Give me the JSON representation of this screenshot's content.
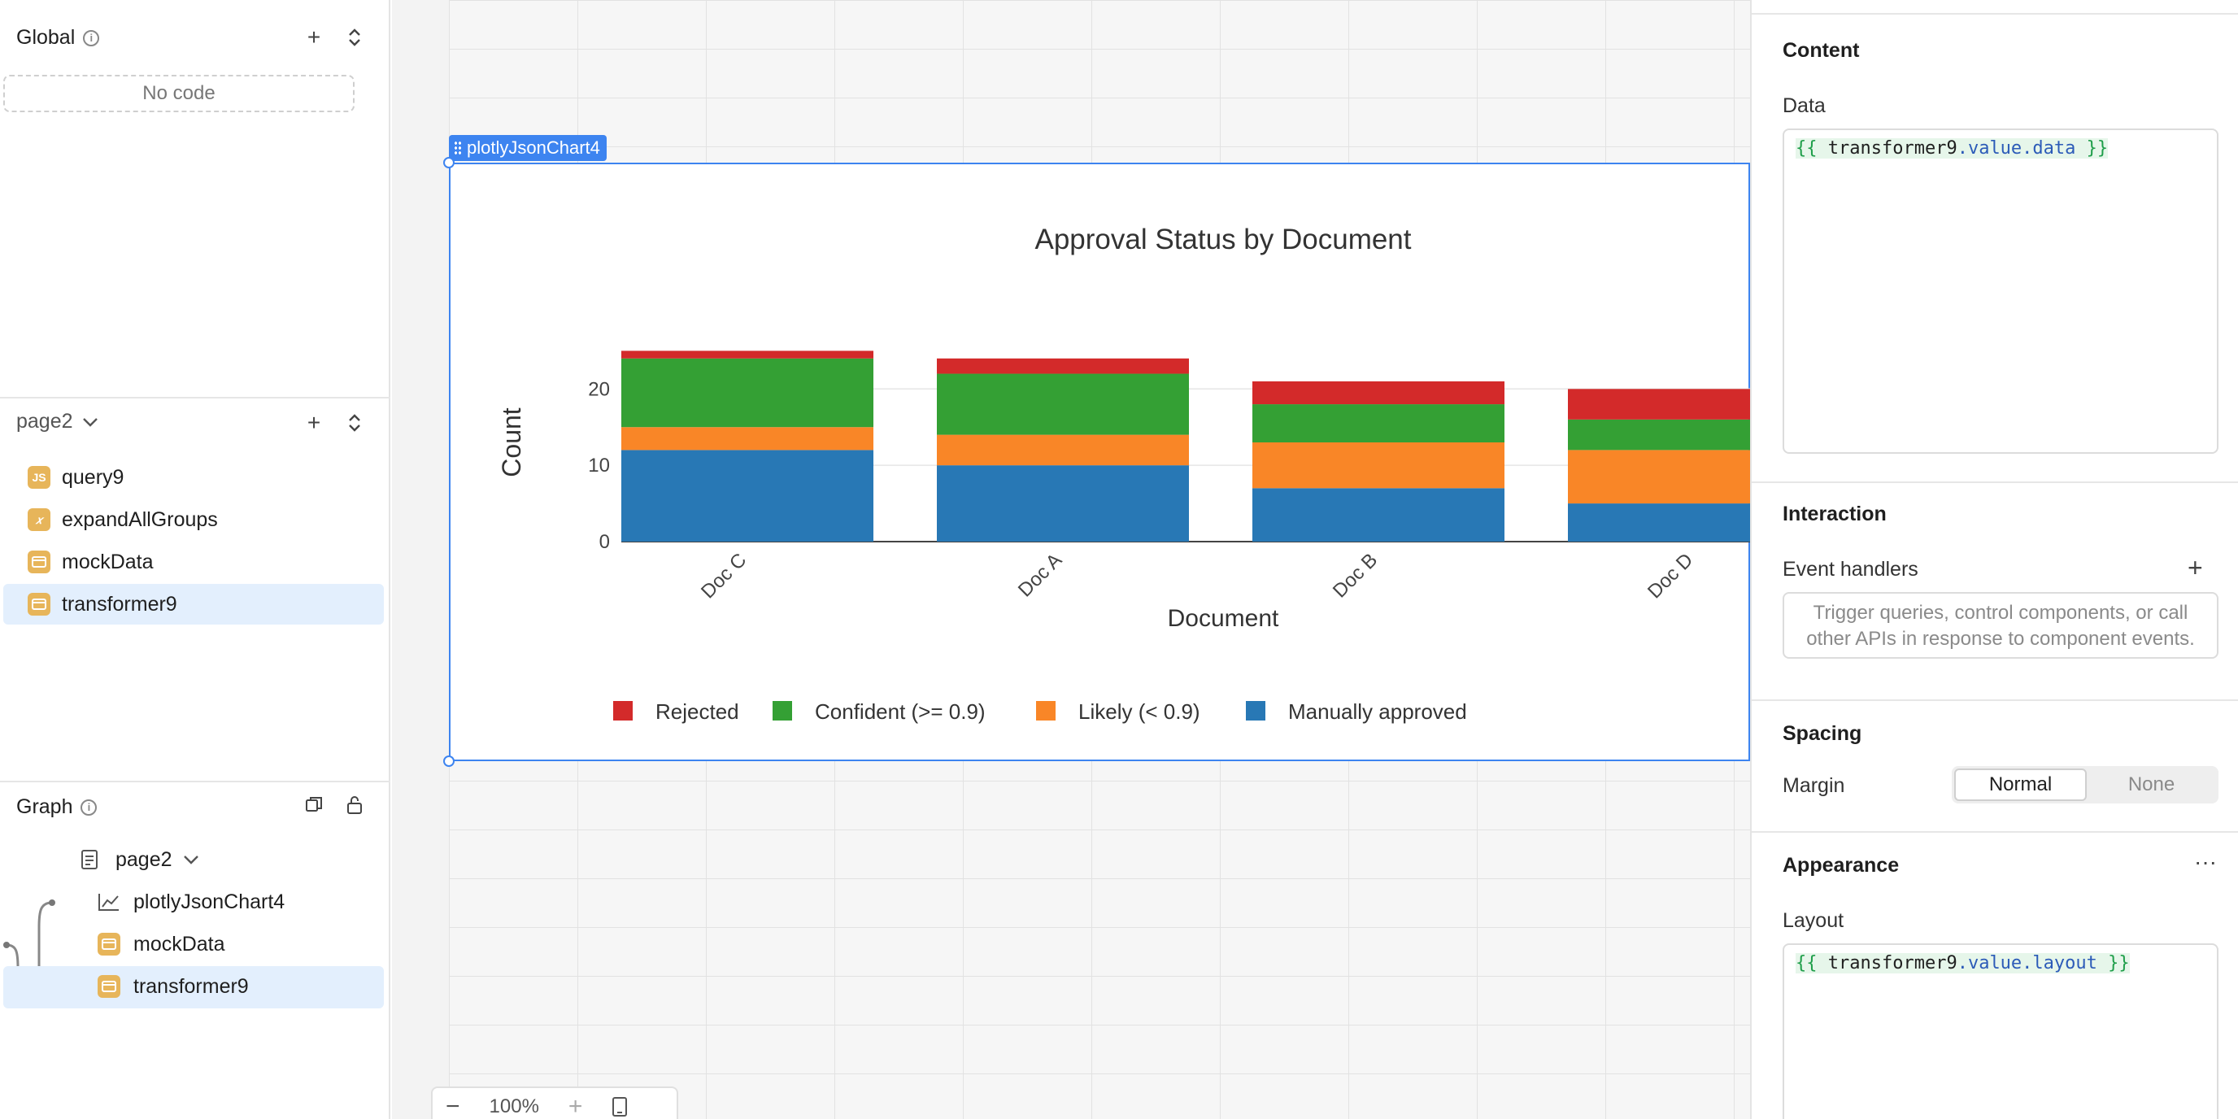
{
  "left_panel": {
    "global": {
      "title": "Global",
      "no_code": "No code"
    },
    "page": {
      "title": "page2",
      "items": [
        {
          "label": "query9",
          "icon": "js-icon",
          "badge": "JS"
        },
        {
          "label": "expandAllGroups",
          "icon": "function-icon",
          "badge": "x"
        },
        {
          "label": "mockData",
          "icon": "variable-icon",
          "badge": ""
        },
        {
          "label": "transformer9",
          "icon": "transformer-icon",
          "badge": "",
          "selected": true
        }
      ]
    },
    "graph": {
      "title": "Graph",
      "root": "page2",
      "nodes": [
        {
          "label": "plotlyJsonChart4",
          "icon": "line-chart-icon"
        },
        {
          "label": "mockData",
          "icon": "variable-icon"
        },
        {
          "label": "transformer9",
          "icon": "transformer-icon",
          "selected": true
        }
      ]
    }
  },
  "canvas": {
    "component_badge": "plotlyJsonChart4",
    "zoom": "100%"
  },
  "chart_data": {
    "type": "bar",
    "stacked": true,
    "title": "Approval Status by Document",
    "xlabel": "Document",
    "ylabel": "Count",
    "categories": [
      "Doc C",
      "Doc A",
      "Doc B",
      "Doc D"
    ],
    "yticks": [
      0,
      10,
      20
    ],
    "ylim": [
      0,
      26
    ],
    "series": [
      {
        "name": "Manually approved",
        "values": [
          12,
          10,
          7,
          5
        ],
        "color": "#2878b5"
      },
      {
        "name": "Likely (< 0.9)",
        "values": [
          3,
          4,
          6,
          7
        ],
        "color": "#f98627"
      },
      {
        "name": "Confident (>= 0.9)",
        "values": [
          9,
          8,
          5,
          4
        ],
        "color": "#34a034"
      },
      {
        "name": "Rejected",
        "values": [
          1,
          2,
          3,
          4
        ],
        "color": "#d32a2a"
      }
    ],
    "legend_order": [
      "Rejected",
      "Confident (>= 0.9)",
      "Likely (< 0.9)",
      "Manually approved"
    ],
    "legend_position": "bottom"
  },
  "right_panel": {
    "content": {
      "title": "Content",
      "data_label": "Data",
      "data_expr": {
        "open": "{{",
        "var": "transformer9",
        "prop": ".value.data",
        "close": "}}"
      }
    },
    "interaction": {
      "title": "Interaction",
      "event_handlers_label": "Event handlers",
      "event_placeholder": "Trigger queries, control components, or call other APIs in response to component events."
    },
    "spacing": {
      "title": "Spacing",
      "margin_label": "Margin",
      "options": [
        "Normal",
        "None"
      ],
      "selected": "Normal"
    },
    "appearance": {
      "title": "Appearance",
      "layout_label": "Layout",
      "layout_expr": {
        "open": "{{",
        "var": "transformer9",
        "prop": ".value.layout",
        "close": "}}"
      }
    }
  }
}
